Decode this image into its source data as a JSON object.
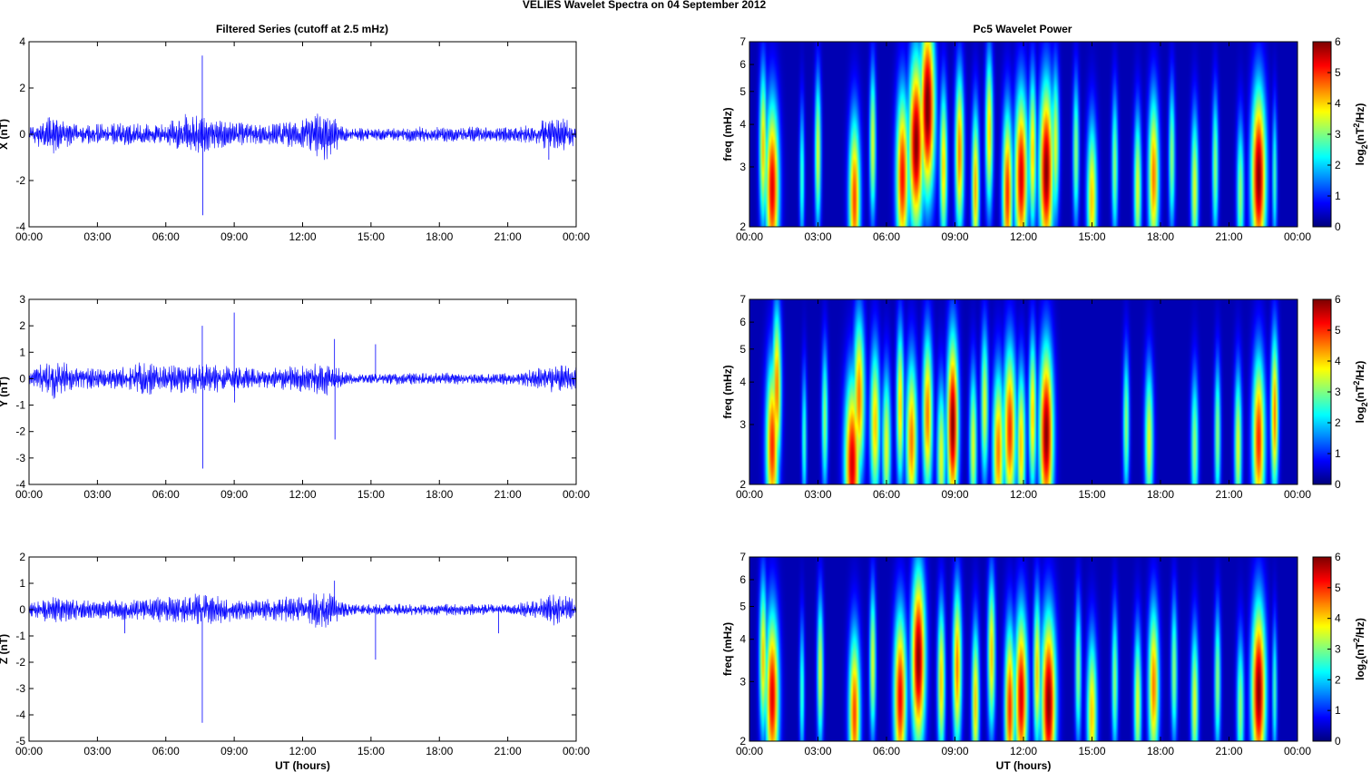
{
  "figure": {
    "title": "VELIES Wavelet Spectra on 04 September 2012",
    "left_title": "Filtered Series (cutoff at 2.5 mHz)",
    "right_title": "Pc5 Wavelet Power",
    "xlabel": "UT (hours)"
  },
  "chart_data": [
    {
      "type": "line",
      "title": "Filtered Series (cutoff at 2.5 mHz)",
      "xlabel": "",
      "ylabel": "X (nT)",
      "xlim": [
        0,
        24
      ],
      "ylim": [
        -4,
        4
      ],
      "xticks": [
        "00:00",
        "03:00",
        "06:00",
        "09:00",
        "12:00",
        "15:00",
        "18:00",
        "21:00",
        "00:00"
      ],
      "yticks": [
        "-4",
        "-2",
        "0",
        "2",
        "4"
      ],
      "yticks_values": [
        -4,
        -2,
        0,
        2,
        4
      ],
      "grid": false,
      "color": "#0000ff",
      "series": [
        {
          "values_note": "filtered Pc5 band magnetic field component, amplitude envelope per hour",
          "envelope": [
            [
              0,
              0.3
            ],
            [
              1,
              0.8
            ],
            [
              2,
              0.4
            ],
            [
              3,
              0.4
            ],
            [
              4,
              0.45
            ],
            [
              5,
              0.4
            ],
            [
              6,
              0.4
            ],
            [
              7,
              0.9
            ],
            [
              8,
              0.6
            ],
            [
              9,
              0.5
            ],
            [
              10,
              0.4
            ],
            [
              11,
              0.5
            ],
            [
              12,
              0.6
            ],
            [
              13,
              1.0
            ],
            [
              14,
              0.3
            ],
            [
              15,
              0.25
            ],
            [
              16,
              0.25
            ],
            [
              17,
              0.3
            ],
            [
              18,
              0.3
            ],
            [
              19,
              0.3
            ],
            [
              20,
              0.3
            ],
            [
              21,
              0.3
            ],
            [
              22,
              0.4
            ],
            [
              23,
              0.7
            ],
            [
              24,
              0.5
            ]
          ],
          "spikes": [
            [
              7.6,
              3.4
            ],
            [
              7.62,
              -3.5
            ],
            [
              13.4,
              -0.6
            ],
            [
              22.8,
              -1.1
            ]
          ]
        }
      ]
    },
    {
      "type": "line",
      "xlabel": "",
      "ylabel": "Y (nT)",
      "xlim": [
        0,
        24
      ],
      "ylim": [
        -4,
        3
      ],
      "xticks": [
        "00:00",
        "03:00",
        "06:00",
        "09:00",
        "12:00",
        "15:00",
        "18:00",
        "21:00",
        "00:00"
      ],
      "yticks": [
        "-4",
        "-3",
        "-2",
        "-1",
        "0",
        "1",
        "2",
        "3"
      ],
      "yticks_values": [
        -4,
        -3,
        -2,
        -1,
        0,
        1,
        2,
        3
      ],
      "grid": false,
      "color": "#0000ff",
      "series": [
        {
          "values_note": "filtered Pc5 band magnetic field component",
          "envelope": [
            [
              0,
              0.3
            ],
            [
              1,
              0.7
            ],
            [
              2,
              0.4
            ],
            [
              3,
              0.35
            ],
            [
              4,
              0.4
            ],
            [
              5,
              0.6
            ],
            [
              6,
              0.45
            ],
            [
              7,
              0.5
            ],
            [
              8,
              0.5
            ],
            [
              9,
              0.45
            ],
            [
              10,
              0.35
            ],
            [
              11,
              0.4
            ],
            [
              12,
              0.45
            ],
            [
              13,
              0.6
            ],
            [
              14,
              0.2
            ],
            [
              15,
              0.15
            ],
            [
              16,
              0.2
            ],
            [
              17,
              0.2
            ],
            [
              18,
              0.2
            ],
            [
              19,
              0.2
            ],
            [
              20,
              0.2
            ],
            [
              21,
              0.2
            ],
            [
              22,
              0.3
            ],
            [
              23,
              0.5
            ],
            [
              24,
              0.4
            ]
          ],
          "spikes": [
            [
              7.6,
              2.0
            ],
            [
              7.62,
              -3.4
            ],
            [
              9.0,
              2.5
            ],
            [
              9.02,
              -0.9
            ],
            [
              13.4,
              1.5
            ],
            [
              13.42,
              -2.3
            ],
            [
              15.2,
              1.3
            ]
          ]
        }
      ]
    },
    {
      "type": "line",
      "xlabel": "UT (hours)",
      "ylabel": "Z (nT)",
      "xlim": [
        0,
        24
      ],
      "ylim": [
        -5,
        2
      ],
      "xticks": [
        "00:00",
        "03:00",
        "06:00",
        "09:00",
        "12:00",
        "15:00",
        "18:00",
        "21:00",
        "00:00"
      ],
      "yticks": [
        "-5",
        "-4",
        "-3",
        "-2",
        "-1",
        "0",
        "1",
        "2"
      ],
      "yticks_values": [
        -5,
        -4,
        -3,
        -2,
        -1,
        0,
        1,
        2
      ],
      "grid": false,
      "color": "#0000ff",
      "series": [
        {
          "values_note": "filtered Pc5 band magnetic field component",
          "envelope": [
            [
              0,
              0.25
            ],
            [
              1,
              0.5
            ],
            [
              2,
              0.35
            ],
            [
              3,
              0.3
            ],
            [
              4,
              0.35
            ],
            [
              5,
              0.35
            ],
            [
              6,
              0.5
            ],
            [
              7,
              0.55
            ],
            [
              8,
              0.5
            ],
            [
              9,
              0.4
            ],
            [
              10,
              0.35
            ],
            [
              11,
              0.45
            ],
            [
              12,
              0.5
            ],
            [
              13,
              0.7
            ],
            [
              14,
              0.2
            ],
            [
              15,
              0.2
            ],
            [
              16,
              0.2
            ],
            [
              17,
              0.2
            ],
            [
              18,
              0.2
            ],
            [
              19,
              0.2
            ],
            [
              20,
              0.2
            ],
            [
              21,
              0.2
            ],
            [
              22,
              0.3
            ],
            [
              23,
              0.6
            ],
            [
              24,
              0.4
            ]
          ],
          "spikes": [
            [
              7.6,
              -4.3
            ],
            [
              13.4,
              1.1
            ],
            [
              15.2,
              -1.9
            ],
            [
              4.2,
              -0.9
            ],
            [
              20.6,
              -0.9
            ]
          ]
        }
      ]
    },
    {
      "type": "heatmap",
      "title": "Pc5 Wavelet Power",
      "xlabel": "",
      "ylabel": "freq (mHz)",
      "xlim": [
        0,
        24
      ],
      "ylim": [
        2,
        7
      ],
      "yscale": "log",
      "xticks": [
        "00:00",
        "03:00",
        "06:00",
        "09:00",
        "12:00",
        "15:00",
        "18:00",
        "21:00",
        "00:00"
      ],
      "yticks": [
        "2",
        "3",
        "4",
        "5",
        "6",
        "7"
      ],
      "yticks_values": [
        2,
        3,
        4,
        5,
        6,
        7
      ],
      "colorbar": {
        "label": "log2(nT^2/Hz)",
        "range": [
          0,
          6
        ],
        "ticks": [
          "0",
          "1",
          "2",
          "3",
          "4",
          "5",
          "6"
        ],
        "colormap": "jet"
      },
      "blobs": [
        [
          1.0,
          2.6,
          5.3,
          5.4
        ],
        [
          0.6,
          3.4,
          3.0,
          4.0
        ],
        [
          2.3,
          2.8,
          2.0,
          2.5
        ],
        [
          3.0,
          3.3,
          2.5,
          3.5
        ],
        [
          4.6,
          2.4,
          4.5,
          4.8
        ],
        [
          5.4,
          3.5,
          2.5,
          3.5
        ],
        [
          6.7,
          2.8,
          5.0,
          5.2
        ],
        [
          7.3,
          3.5,
          6.0,
          6.0
        ],
        [
          7.8,
          4.5,
          5.8,
          6.2
        ],
        [
          8.5,
          3.0,
          3.0,
          4.0
        ],
        [
          9.2,
          3.3,
          3.5,
          4.5
        ],
        [
          9.9,
          2.6,
          3.0,
          4.2
        ],
        [
          10.5,
          3.8,
          3.0,
          4.0
        ],
        [
          11.3,
          2.5,
          4.0,
          5.0
        ],
        [
          11.9,
          2.8,
          5.2,
          5.5
        ],
        [
          12.4,
          3.3,
          3.0,
          4.0
        ],
        [
          13.0,
          2.9,
          5.6,
          6.0
        ],
        [
          13.4,
          3.5,
          3.0,
          3.5
        ],
        [
          14.3,
          3.3,
          2.5,
          3.0
        ],
        [
          15.0,
          2.4,
          4.0,
          4.0
        ],
        [
          16.0,
          3.0,
          2.5,
          3.0
        ],
        [
          17.0,
          2.6,
          3.0,
          3.5
        ],
        [
          17.7,
          2.8,
          4.2,
          4.5
        ],
        [
          18.5,
          3.2,
          2.5,
          3.0
        ],
        [
          19.5,
          2.6,
          3.0,
          3.5
        ],
        [
          20.4,
          3.0,
          2.5,
          3.0
        ],
        [
          21.5,
          2.5,
          3.0,
          3.0
        ],
        [
          22.3,
          2.8,
          5.8,
          6.0
        ],
        [
          23.0,
          2.8,
          2.0,
          2.5
        ]
      ]
    },
    {
      "type": "heatmap",
      "xlabel": "",
      "ylabel": "freq (mHz)",
      "xlim": [
        0,
        24
      ],
      "ylim": [
        2,
        7
      ],
      "yscale": "log",
      "xticks": [
        "00:00",
        "03:00",
        "06:00",
        "09:00",
        "12:00",
        "15:00",
        "18:00",
        "21:00",
        "00:00"
      ],
      "yticks": [
        "2",
        "3",
        "4",
        "5",
        "6",
        "7"
      ],
      "yticks_values": [
        2,
        3,
        4,
        5,
        6,
        7
      ],
      "colorbar": {
        "label": "log2(nT^2/Hz)",
        "range": [
          0,
          6
        ],
        "ticks": [
          "0",
          "1",
          "2",
          "3",
          "4",
          "5",
          "6"
        ],
        "colormap": "jet"
      },
      "blobs": [
        [
          1.0,
          2.6,
          5.0,
          5.0
        ],
        [
          1.2,
          3.8,
          3.5,
          4.5
        ],
        [
          2.4,
          2.7,
          2.0,
          2.5
        ],
        [
          3.3,
          3.1,
          2.5,
          3.0
        ],
        [
          4.5,
          2.3,
          6.0,
          5.5
        ],
        [
          4.8,
          3.6,
          4.5,
          4.5
        ],
        [
          5.5,
          3.0,
          4.0,
          4.0
        ],
        [
          6.0,
          2.6,
          3.5,
          3.5
        ],
        [
          6.6,
          3.4,
          3.0,
          4.0
        ],
        [
          7.1,
          2.7,
          4.5,
          4.5
        ],
        [
          7.8,
          3.2,
          4.0,
          4.5
        ],
        [
          8.4,
          2.4,
          3.5,
          3.5
        ],
        [
          8.9,
          3.0,
          4.5,
          6.0
        ],
        [
          9.8,
          2.6,
          3.0,
          3.5
        ],
        [
          10.3,
          3.4,
          3.0,
          3.5
        ],
        [
          10.9,
          2.5,
          4.5,
          4.5
        ],
        [
          11.4,
          2.9,
          5.0,
          5.0
        ],
        [
          11.9,
          2.6,
          3.5,
          4.0
        ],
        [
          12.4,
          3.2,
          3.0,
          4.0
        ],
        [
          13.0,
          2.8,
          5.5,
          6.0
        ],
        [
          16.5,
          3.0,
          2.5,
          3.0
        ],
        [
          17.5,
          2.7,
          3.5,
          3.5
        ],
        [
          19.5,
          2.6,
          3.0,
          3.0
        ],
        [
          20.5,
          2.8,
          2.5,
          3.0
        ],
        [
          21.4,
          2.6,
          3.0,
          3.5
        ],
        [
          22.3,
          2.7,
          5.0,
          5.0
        ],
        [
          23.0,
          3.2,
          3.0,
          4.5
        ]
      ]
    },
    {
      "type": "heatmap",
      "xlabel": "UT (hours)",
      "ylabel": "freq (mHz)",
      "xlim": [
        0,
        24
      ],
      "ylim": [
        2,
        7
      ],
      "yscale": "log",
      "xticks": [
        "00:00",
        "03:00",
        "06:00",
        "09:00",
        "12:00",
        "15:00",
        "18:00",
        "21:00",
        "00:00"
      ],
      "yticks": [
        "2",
        "3",
        "4",
        "5",
        "6",
        "7"
      ],
      "yticks_values": [
        2,
        3,
        4,
        5,
        6,
        7
      ],
      "colorbar": {
        "label": "log2(nT^2/Hz)",
        "range": [
          0,
          6
        ],
        "ticks": [
          "0",
          "1",
          "2",
          "3",
          "4",
          "5",
          "6"
        ],
        "colormap": "jet"
      },
      "blobs": [
        [
          1.0,
          2.7,
          5.2,
          5.4
        ],
        [
          0.6,
          3.5,
          3.0,
          4.0
        ],
        [
          2.3,
          2.8,
          2.0,
          2.5
        ],
        [
          3.1,
          3.2,
          2.5,
          3.5
        ],
        [
          4.6,
          2.4,
          4.5,
          4.8
        ],
        [
          5.4,
          3.4,
          2.5,
          3.5
        ],
        [
          6.6,
          2.7,
          5.0,
          5.3
        ],
        [
          7.4,
          3.5,
          5.5,
          6.0
        ],
        [
          8.4,
          3.0,
          3.0,
          4.0
        ],
        [
          9.1,
          3.3,
          3.5,
          4.5
        ],
        [
          9.9,
          2.6,
          3.0,
          4.0
        ],
        [
          10.6,
          3.6,
          3.0,
          4.0
        ],
        [
          11.4,
          2.5,
          4.0,
          5.0
        ],
        [
          11.9,
          2.7,
          5.0,
          5.5
        ],
        [
          12.6,
          3.2,
          3.0,
          4.0
        ],
        [
          13.1,
          2.6,
          5.8,
          6.0
        ],
        [
          14.4,
          3.2,
          2.5,
          3.0
        ],
        [
          15.0,
          2.4,
          4.0,
          4.0
        ],
        [
          16.0,
          3.0,
          2.5,
          3.0
        ],
        [
          17.0,
          2.6,
          3.0,
          3.5
        ],
        [
          17.7,
          2.9,
          4.2,
          4.5
        ],
        [
          18.6,
          3.2,
          2.5,
          3.0
        ],
        [
          19.5,
          2.6,
          3.0,
          3.5
        ],
        [
          20.5,
          3.0,
          2.5,
          3.0
        ],
        [
          21.5,
          2.5,
          3.0,
          3.0
        ],
        [
          22.3,
          2.8,
          5.6,
          6.0
        ],
        [
          23.0,
          2.8,
          2.0,
          2.5
        ]
      ]
    }
  ]
}
